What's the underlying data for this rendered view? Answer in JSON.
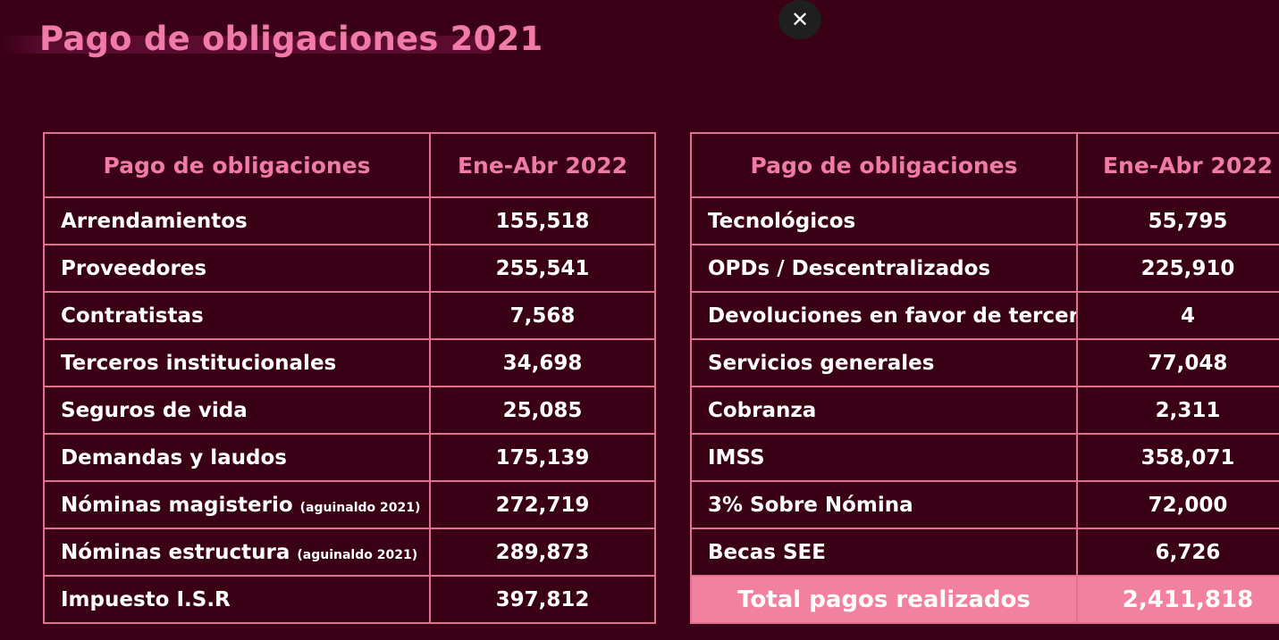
{
  "title": "Pago de obligaciones 2021",
  "close_icon": "close-icon",
  "left_table": {
    "headers": [
      "Pago de obligaciones",
      "Ene-Abr 2022"
    ],
    "rows": [
      {
        "label": "Arrendamientos",
        "note": "",
        "value": "155,518"
      },
      {
        "label": "Proveedores",
        "note": "",
        "value": "255,541"
      },
      {
        "label": "Contratistas",
        "note": "",
        "value": "7,568"
      },
      {
        "label": "Terceros institucionales",
        "note": "",
        "value": "34,698"
      },
      {
        "label": "Seguros de vida",
        "note": "",
        "value": "25,085"
      },
      {
        "label": "Demandas y laudos",
        "note": "",
        "value": "175,139"
      },
      {
        "label": "Nóminas magisterio",
        "note": "(aguinaldo 2021)",
        "value": "272,719"
      },
      {
        "label": "Nóminas estructura",
        "note": "(aguinaldo 2021)",
        "value": "289,873"
      },
      {
        "label": "Impuesto I.S.R",
        "note": "",
        "value": "397,812"
      }
    ]
  },
  "right_table": {
    "headers": [
      "Pago de obligaciones",
      "Ene-Abr 2022"
    ],
    "rows": [
      {
        "label": "Tecnológicos",
        "value": "55,795"
      },
      {
        "label": "OPDs / Descentralizados",
        "value": "225,910"
      },
      {
        "label": "Devoluciones en favor de terceros",
        "value": "4"
      },
      {
        "label": "Servicios generales",
        "value": "77,048"
      },
      {
        "label": "Cobranza",
        "value": "2,311"
      },
      {
        "label": "IMSS",
        "value": "358,071"
      },
      {
        "label": "3% Sobre Nómina",
        "value": "72,000"
      },
      {
        "label": "Becas SEE",
        "value": "6,726"
      }
    ],
    "total": {
      "label": "Total pagos realizados",
      "value": "2,411,818"
    }
  }
}
